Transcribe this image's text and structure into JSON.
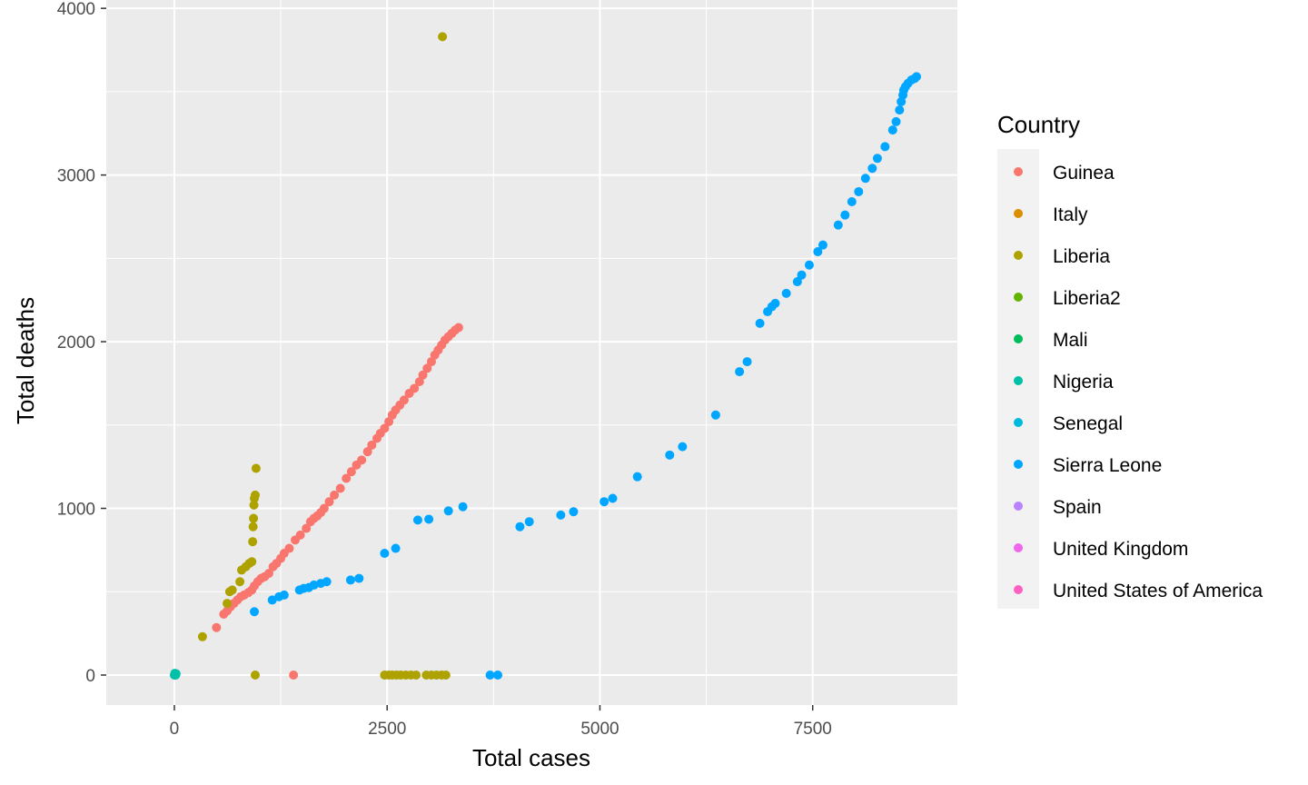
{
  "chart_data": {
    "type": "scatter",
    "xlabel": "Total cases",
    "ylabel": "Total deaths",
    "xlim": [
      -800,
      9200
    ],
    "ylim": [
      -180,
      4050
    ],
    "x_ticks": [
      0,
      2500,
      5000,
      7500
    ],
    "x_tick_labels": [
      "0",
      "2500",
      "5000",
      "7500"
    ],
    "y_ticks": [
      0,
      1000,
      2000,
      3000,
      4000
    ],
    "y_tick_labels": [
      "0",
      "1000",
      "2000",
      "3000",
      "4000"
    ],
    "grid": true,
    "legend": {
      "title": "Country",
      "position": "right"
    },
    "series": [
      {
        "name": "Guinea",
        "color": "#F8766D",
        "points": [
          [
            495,
            285
          ],
          [
            580,
            365
          ],
          [
            620,
            385
          ],
          [
            660,
            410
          ],
          [
            700,
            430
          ],
          [
            740,
            450
          ],
          [
            780,
            470
          ],
          [
            820,
            480
          ],
          [
            870,
            495
          ],
          [
            910,
            510
          ],
          [
            940,
            535
          ],
          [
            980,
            560
          ],
          [
            1020,
            580
          ],
          [
            1060,
            590
          ],
          [
            1110,
            610
          ],
          [
            1160,
            650
          ],
          [
            1200,
            670
          ],
          [
            1250,
            700
          ],
          [
            1290,
            730
          ],
          [
            1350,
            760
          ],
          [
            1420,
            810
          ],
          [
            1480,
            840
          ],
          [
            1550,
            880
          ],
          [
            1600,
            920
          ],
          [
            1640,
            940
          ],
          [
            1680,
            955
          ],
          [
            1720,
            975
          ],
          [
            1760,
            1000
          ],
          [
            1820,
            1040
          ],
          [
            1880,
            1080
          ],
          [
            1950,
            1120
          ],
          [
            2020,
            1180
          ],
          [
            2080,
            1220
          ],
          [
            2140,
            1260
          ],
          [
            2200,
            1290
          ],
          [
            2270,
            1340
          ],
          [
            2320,
            1380
          ],
          [
            2380,
            1420
          ],
          [
            2420,
            1450
          ],
          [
            2470,
            1480
          ],
          [
            2520,
            1520
          ],
          [
            2560,
            1560
          ],
          [
            2600,
            1590
          ],
          [
            2650,
            1620
          ],
          [
            2700,
            1650
          ],
          [
            2760,
            1690
          ],
          [
            2820,
            1720
          ],
          [
            2880,
            1760
          ],
          [
            2920,
            1800
          ],
          [
            2970,
            1840
          ],
          [
            3020,
            1880
          ],
          [
            3060,
            1920
          ],
          [
            3100,
            1950
          ],
          [
            3140,
            1980
          ],
          [
            3180,
            2010
          ],
          [
            3220,
            2030
          ],
          [
            3260,
            2050
          ],
          [
            3300,
            2070
          ],
          [
            3340,
            2085
          ],
          [
            1400,
            0
          ]
        ]
      },
      {
        "name": "Italy",
        "color": "#DB8E00",
        "points": []
      },
      {
        "name": "Liberia",
        "color": "#AEA200",
        "points": [
          [
            330,
            230
          ],
          [
            620,
            430
          ],
          [
            650,
            500
          ],
          [
            680,
            510
          ],
          [
            770,
            560
          ],
          [
            790,
            630
          ],
          [
            840,
            650
          ],
          [
            880,
            670
          ],
          [
            910,
            680
          ],
          [
            920,
            800
          ],
          [
            925,
            890
          ],
          [
            930,
            940
          ],
          [
            935,
            1020
          ],
          [
            940,
            1060
          ],
          [
            950,
            1080
          ],
          [
            960,
            1240
          ],
          [
            3150,
            3830
          ],
          [
            950,
            0
          ],
          [
            2470,
            0
          ],
          [
            2520,
            0
          ],
          [
            2560,
            0
          ],
          [
            2610,
            0
          ],
          [
            2660,
            0
          ],
          [
            2720,
            0
          ],
          [
            2780,
            0
          ],
          [
            2840,
            0
          ],
          [
            2960,
            0
          ],
          [
            3020,
            0
          ],
          [
            3080,
            0
          ],
          [
            3140,
            0
          ],
          [
            3190,
            0
          ]
        ]
      },
      {
        "name": "Liberia2",
        "color": "#64B200",
        "points": []
      },
      {
        "name": "Mali",
        "color": "#00BD5C",
        "points": []
      },
      {
        "name": "Nigeria",
        "color": "#00C1A7",
        "points": [
          [
            0,
            0
          ],
          [
            5,
            10
          ],
          [
            10,
            5
          ],
          [
            15,
            0
          ],
          [
            20,
            8
          ]
        ]
      },
      {
        "name": "Senegal",
        "color": "#00BADE",
        "points": []
      },
      {
        "name": "Sierra Leone",
        "color": "#00A6FF",
        "points": [
          [
            940,
            380
          ],
          [
            1150,
            450
          ],
          [
            1230,
            470
          ],
          [
            1290,
            480
          ],
          [
            1470,
            510
          ],
          [
            1520,
            520
          ],
          [
            1580,
            525
          ],
          [
            1640,
            540
          ],
          [
            1720,
            550
          ],
          [
            1790,
            560
          ],
          [
            2070,
            570
          ],
          [
            2170,
            580
          ],
          [
            2470,
            730
          ],
          [
            2600,
            760
          ],
          [
            2860,
            930
          ],
          [
            2990,
            935
          ],
          [
            3220,
            985
          ],
          [
            3390,
            1010
          ],
          [
            3710,
            0
          ],
          [
            3800,
            0
          ],
          [
            4060,
            890
          ],
          [
            4170,
            920
          ],
          [
            4540,
            960
          ],
          [
            4690,
            980
          ],
          [
            5050,
            1040
          ],
          [
            5150,
            1060
          ],
          [
            5440,
            1190
          ],
          [
            5820,
            1320
          ],
          [
            5970,
            1370
          ],
          [
            6360,
            1560
          ],
          [
            6640,
            1820
          ],
          [
            6730,
            1880
          ],
          [
            6880,
            2110
          ],
          [
            6970,
            2180
          ],
          [
            7020,
            2210
          ],
          [
            7060,
            2230
          ],
          [
            7190,
            2290
          ],
          [
            7320,
            2360
          ],
          [
            7370,
            2400
          ],
          [
            7460,
            2460
          ],
          [
            7560,
            2540
          ],
          [
            7620,
            2580
          ],
          [
            7800,
            2700
          ],
          [
            7880,
            2760
          ],
          [
            7960,
            2840
          ],
          [
            8040,
            2900
          ],
          [
            8120,
            2980
          ],
          [
            8200,
            3040
          ],
          [
            8260,
            3100
          ],
          [
            8350,
            3170
          ],
          [
            8440,
            3270
          ],
          [
            8480,
            3320
          ],
          [
            8520,
            3390
          ],
          [
            8540,
            3440
          ],
          [
            8560,
            3480
          ],
          [
            8570,
            3510
          ],
          [
            8590,
            3530
          ],
          [
            8620,
            3550
          ],
          [
            8660,
            3570
          ],
          [
            8700,
            3580
          ],
          [
            8720,
            3590
          ]
        ]
      },
      {
        "name": "Spain",
        "color": "#B983FF",
        "points": []
      },
      {
        "name": "United Kingdom",
        "color": "#EF67EB",
        "points": []
      },
      {
        "name": "United States of America",
        "color": "#FF61C3",
        "points": []
      }
    ]
  }
}
